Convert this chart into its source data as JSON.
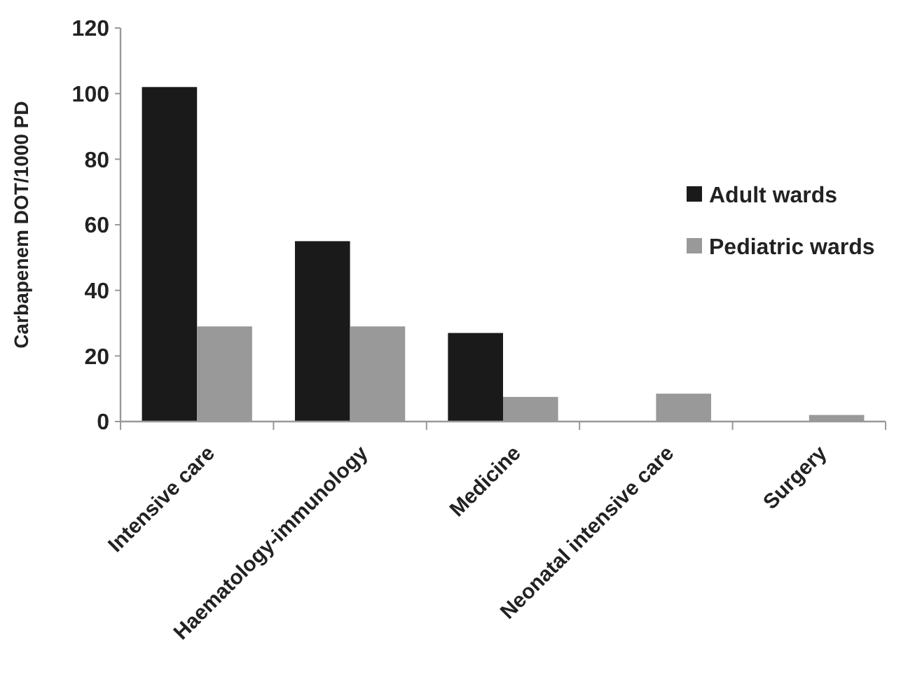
{
  "chart_data": {
    "type": "bar",
    "ylabel": "Carbapenem DOT/1000 PD",
    "categories": [
      "Intensive care",
      "Haematology-immunology",
      "Medicine",
      "Neonatal intensive care",
      "Surgery"
    ],
    "series": [
      {
        "name": "Adult wards",
        "color": "#1a1a1a",
        "values": [
          102,
          55,
          27,
          0,
          0
        ]
      },
      {
        "name": "Pediatric wards",
        "color": "#999999",
        "values": [
          29,
          29,
          7.5,
          8.5,
          2
        ]
      }
    ],
    "ylim": [
      0,
      120
    ],
    "yticks": [
      0,
      20,
      40,
      60,
      80,
      100,
      120
    ],
    "grid": false,
    "legend": "right"
  }
}
